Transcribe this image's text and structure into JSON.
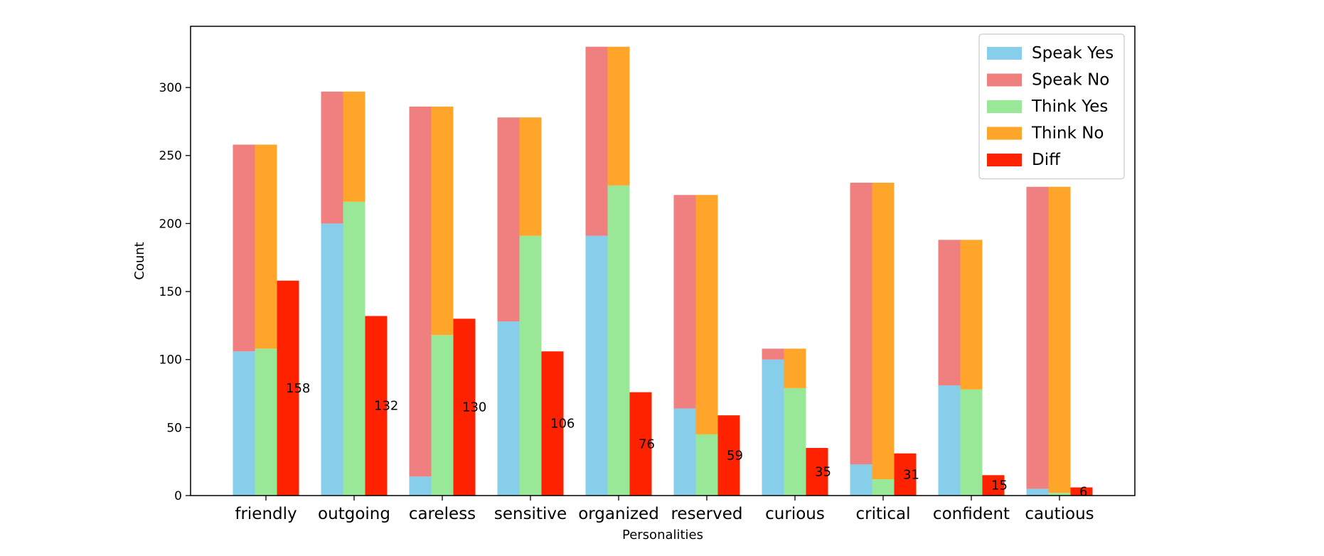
{
  "chart_data": {
    "type": "bar",
    "xlabel": "Personalities",
    "ylabel": "Count",
    "ylim": [
      0,
      345
    ],
    "yticks": [
      0,
      50,
      100,
      150,
      200,
      250,
      300
    ],
    "categories": [
      "friendly",
      "outgoing",
      "careless",
      "sensitive",
      "organized",
      "reserved",
      "curious",
      "critical",
      "confident",
      "cautious"
    ],
    "series": [
      {
        "name": "Speak Yes",
        "color": "#87ceeb",
        "stack": "speak",
        "values": [
          106,
          200,
          14,
          128,
          191,
          64,
          100,
          23,
          81,
          5
        ]
      },
      {
        "name": "Speak No",
        "color": "#f08080",
        "stack": "speak",
        "values": [
          152,
          97,
          272,
          150,
          139,
          157,
          8,
          207,
          107,
          222
        ]
      },
      {
        "name": "Think Yes",
        "color": "#98e898",
        "stack": "think",
        "values": [
          108,
          216,
          118,
          191,
          228,
          45,
          79,
          12,
          78,
          2
        ]
      },
      {
        "name": "Think No",
        "color": "#ffa52a",
        "stack": "think",
        "values": [
          150,
          81,
          168,
          87,
          102,
          176,
          29,
          218,
          110,
          225
        ]
      },
      {
        "name": "Diff",
        "color": "#ff2200",
        "stack": "diff",
        "values": [
          158,
          132,
          130,
          106,
          76,
          59,
          35,
          31,
          15,
          6
        ]
      }
    ],
    "data_labels": [
      "158",
      "132",
      "130",
      "106",
      "76",
      "59",
      "35",
      "31",
      "15",
      "6"
    ],
    "legend_position": "top-right",
    "grid": false
  }
}
